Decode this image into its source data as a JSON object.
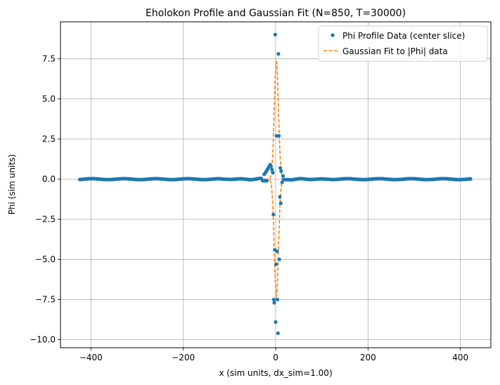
{
  "chart_data": {
    "type": "scatter",
    "title": "Eholokon Profile and Gaussian Fit (N=850, T=30000)",
    "xlabel": "x (sim units, dx_sim=1.00)",
    "ylabel": "Phi (sim units)",
    "xlim": [
      -466,
      466
    ],
    "ylim": [
      -10.5,
      9.8
    ],
    "xticks": [
      -400,
      -200,
      0,
      200,
      400
    ],
    "xtick_labels": [
      "−400",
      "−200",
      "0",
      "200",
      "400"
    ],
    "yticks": [
      -10.0,
      -7.5,
      -5.0,
      -2.5,
      0.0,
      2.5,
      5.0,
      7.5
    ],
    "ytick_labels": [
      "−10.0",
      "−7.5",
      "−5.0",
      "−2.5",
      "0.0",
      "2.5",
      "5.0",
      "7.5"
    ],
    "grid": true,
    "legend_position": "top-right",
    "colors": {
      "data": "#1f77b4",
      "fit": "#ff7f0e",
      "grid": "#b0b0b0"
    },
    "series": [
      {
        "name": "Phi Profile Data (center slice)",
        "kind": "points",
        "flat_range": [
          -424,
          424
        ],
        "outliers": [
          [
            -25,
            0.3
          ],
          [
            -22,
            0.4
          ],
          [
            -20,
            0.5
          ],
          [
            -18,
            0.6
          ],
          [
            -16,
            0.7
          ],
          [
            -14,
            0.8
          ],
          [
            -12,
            0.9
          ],
          [
            -10,
            0.8
          ],
          [
            -8,
            0.6
          ],
          [
            -6,
            0.4
          ],
          [
            -5,
            -2.2
          ],
          [
            -4,
            -7.5
          ],
          [
            -3,
            -7.7
          ],
          [
            -2,
            -4.4
          ],
          [
            -1,
            9.0
          ],
          [
            0,
            -8.9
          ],
          [
            1,
            -5.3
          ],
          [
            2,
            2.7
          ],
          [
            3,
            -4.5
          ],
          [
            4,
            -7.5
          ],
          [
            5,
            -9.6
          ],
          [
            6,
            7.8
          ],
          [
            7,
            2.7
          ],
          [
            8,
            -5.0
          ],
          [
            9,
            -1.1
          ],
          [
            10,
            0.7
          ],
          [
            11,
            -1.5
          ],
          [
            12,
            0.5
          ],
          [
            14,
            -0.2
          ],
          [
            16,
            0.2
          ]
        ]
      },
      {
        "name": "Gaussian Fit to |Phi| data",
        "kind": "fit",
        "amplitude": 7.3,
        "center": 1.5,
        "sigma": 4.5
      }
    ]
  }
}
